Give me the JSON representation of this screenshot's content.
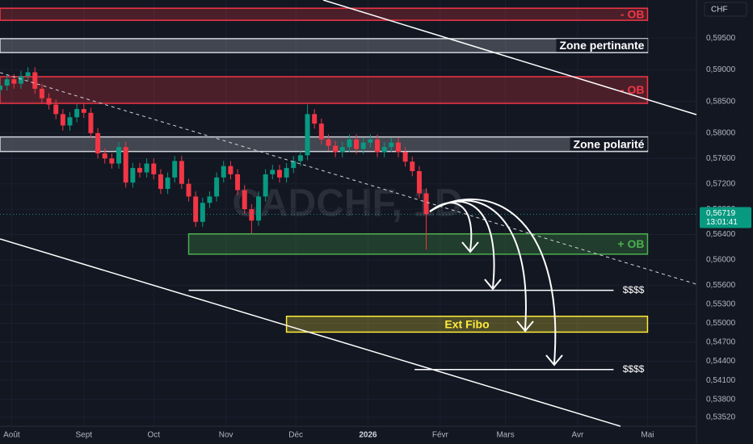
{
  "chart_data": {
    "type": "candlestick",
    "currency": "CHF",
    "watermark": "CADCHF, 1D",
    "x": [
      -5,
      -2,
      1,
      4,
      7,
      10,
      13,
      16,
      19,
      22,
      25,
      28,
      31,
      34,
      37,
      40,
      43,
      46,
      49,
      52,
      55,
      58,
      61,
      64,
      67,
      70,
      73,
      76,
      79,
      82,
      85,
      88,
      91,
      94,
      97,
      100,
      103,
      106,
      109,
      112,
      115,
      118,
      121,
      124,
      127,
      130,
      133,
      136,
      139,
      142,
      145,
      148,
      151,
      154,
      157,
      160,
      163,
      166,
      169,
      172,
      175,
      178
    ],
    "open": [
      0.5868,
      0.5875,
      0.5885,
      0.5878,
      0.589,
      0.5896,
      0.587,
      0.5855,
      0.5845,
      0.583,
      0.5812,
      0.5825,
      0.5838,
      0.5832,
      0.58,
      0.5768,
      0.576,
      0.5752,
      0.5778,
      0.5722,
      0.5745,
      0.5738,
      0.5752,
      0.5735,
      0.5712,
      0.573,
      0.5756,
      0.572,
      0.57,
      0.566,
      0.569,
      0.57,
      0.573,
      0.5748,
      0.5735,
      0.571,
      0.568,
      0.5662,
      0.57,
      0.5735,
      0.5742,
      0.573,
      0.5745,
      0.5756,
      0.5765,
      0.583,
      0.5815,
      0.579,
      0.578,
      0.577,
      0.5778,
      0.579,
      0.5775,
      0.5785,
      0.579,
      0.577,
      0.5778,
      0.5785,
      0.577,
      0.5755,
      0.574,
      0.5705
    ],
    "high": [
      0.5883,
      0.5893,
      0.5893,
      0.5898,
      0.5904,
      0.5904,
      0.5878,
      0.5863,
      0.5853,
      0.5838,
      0.5833,
      0.5846,
      0.5846,
      0.584,
      0.5808,
      0.5776,
      0.5768,
      0.5786,
      0.5786,
      0.5753,
      0.5753,
      0.576,
      0.576,
      0.5743,
      0.5738,
      0.5764,
      0.5764,
      0.5728,
      0.5708,
      0.5698,
      0.5708,
      0.5738,
      0.5756,
      0.5756,
      0.5743,
      0.5718,
      0.5688,
      0.5708,
      0.5743,
      0.575,
      0.575,
      0.5753,
      0.5764,
      0.5773,
      0.5845,
      0.5838,
      0.5823,
      0.5798,
      0.5788,
      0.5786,
      0.5798,
      0.5798,
      0.5793,
      0.5798,
      0.5798,
      0.5786,
      0.5793,
      0.5793,
      0.5778,
      0.5763,
      0.5748,
      0.5713
    ],
    "low": [
      0.586,
      0.5867,
      0.587,
      0.587,
      0.5882,
      0.5862,
      0.5847,
      0.5837,
      0.5822,
      0.5804,
      0.5804,
      0.5817,
      0.5824,
      0.5792,
      0.576,
      0.5752,
      0.5744,
      0.5744,
      0.5714,
      0.5714,
      0.573,
      0.573,
      0.5727,
      0.5704,
      0.5704,
      0.5722,
      0.5712,
      0.5692,
      0.5652,
      0.5652,
      0.5682,
      0.5692,
      0.5722,
      0.5727,
      0.5702,
      0.5672,
      0.5642,
      0.5654,
      0.5692,
      0.5727,
      0.5722,
      0.5722,
      0.5737,
      0.5748,
      0.5757,
      0.5807,
      0.5782,
      0.5772,
      0.5762,
      0.5762,
      0.577,
      0.5767,
      0.5767,
      0.5777,
      0.5762,
      0.5762,
      0.577,
      0.5762,
      0.5747,
      0.5732,
      0.5697,
      0.5616
    ],
    "close": [
      0.5875,
      0.5885,
      0.5878,
      0.589,
      0.5896,
      0.587,
      0.5855,
      0.5845,
      0.583,
      0.5812,
      0.5825,
      0.5838,
      0.5832,
      0.58,
      0.5768,
      0.576,
      0.5752,
      0.5778,
      0.5722,
      0.5745,
      0.5738,
      0.5752,
      0.5735,
      0.5712,
      0.573,
      0.5756,
      0.572,
      0.57,
      0.566,
      0.569,
      0.57,
      0.573,
      0.5748,
      0.5735,
      0.571,
      0.568,
      0.5662,
      0.57,
      0.5735,
      0.5742,
      0.573,
      0.5745,
      0.5756,
      0.5765,
      0.583,
      0.5815,
      0.579,
      0.578,
      0.577,
      0.5778,
      0.579,
      0.5775,
      0.5785,
      0.579,
      0.577,
      0.5778,
      0.5785,
      0.577,
      0.5755,
      0.574,
      0.5705,
      0.5672
    ],
    "up_color": "#089981",
    "down_color": "#f23645",
    "xlim": [
      -5,
      294
    ],
    "ylim": [
      0.5335,
      0.601
    ],
    "xticks": [
      {
        "value": 0,
        "label": "Août"
      },
      {
        "value": 31,
        "label": "Sept"
      },
      {
        "value": 61,
        "label": "Oct"
      },
      {
        "value": 92,
        "label": "Nov"
      },
      {
        "value": 122,
        "label": "Déc"
      },
      {
        "value": 153,
        "label": "2026"
      },
      {
        "value": 184,
        "label": "Févr"
      },
      {
        "value": 212,
        "label": "Mars"
      },
      {
        "value": 243,
        "label": "Avr"
      },
      {
        "value": 273,
        "label": "Mai"
      }
    ],
    "yticks": [
      {
        "value": 0.595,
        "label": "0,59500"
      },
      {
        "value": 0.59,
        "label": "0,59000"
      },
      {
        "value": 0.585,
        "label": "0,58500"
      },
      {
        "value": 0.58,
        "label": "0,58000"
      },
      {
        "value": 0.576,
        "label": "0,57600"
      },
      {
        "value": 0.572,
        "label": "0,57200"
      },
      {
        "value": 0.568,
        "label": "0,56800"
      },
      {
        "value": 0.564,
        "label": "0,56400"
      },
      {
        "value": 0.56,
        "label": "0,56000"
      },
      {
        "value": 0.556,
        "label": "0,55600"
      },
      {
        "value": 0.553,
        "label": "0,55300"
      },
      {
        "value": 0.55,
        "label": "0,55000"
      },
      {
        "value": 0.547,
        "label": "0,54700"
      },
      {
        "value": 0.544,
        "label": "0,54400"
      },
      {
        "value": 0.541,
        "label": "0,54100"
      },
      {
        "value": 0.538,
        "label": "0,53800"
      },
      {
        "value": 0.5352,
        "label": "0,53520"
      }
    ],
    "grid": true,
    "last_price": {
      "value": 0.56719,
      "label": "0,56719"
    },
    "countdown": "13:01:41",
    "zones": [
      {
        "label": "- OB",
        "top": 0.5997,
        "bottom": 0.5978,
        "start": -5,
        "end": 273,
        "color": "#f23645"
      },
      {
        "label": "Zone pertinante",
        "top": 0.5949,
        "bottom": 0.5927,
        "start": -5,
        "end": 273,
        "color": "#d1d4dc"
      },
      {
        "label": "- OB",
        "top": 0.5889,
        "bottom": 0.5847,
        "start": -5,
        "end": 273,
        "color": "#f23645"
      },
      {
        "label": "Zone polarité",
        "top": 0.5794,
        "bottom": 0.5771,
        "start": -5,
        "end": 273,
        "color": "#d1d4dc"
      },
      {
        "label": "+ OB",
        "top": 0.5641,
        "bottom": 0.5609,
        "start": 76,
        "end": 273,
        "color": "#4caf50"
      },
      {
        "label": "Ext Fibo",
        "top": 0.5511,
        "bottom": 0.5486,
        "start": 118,
        "end": 273,
        "color": "#ffeb3b"
      }
    ],
    "levels": [
      {
        "label": "$$$$",
        "value": 0.5552,
        "start": 76,
        "end": 273
      },
      {
        "label": "$$$$",
        "value": 0.5427,
        "start": 173,
        "end": 273
      }
    ]
  }
}
